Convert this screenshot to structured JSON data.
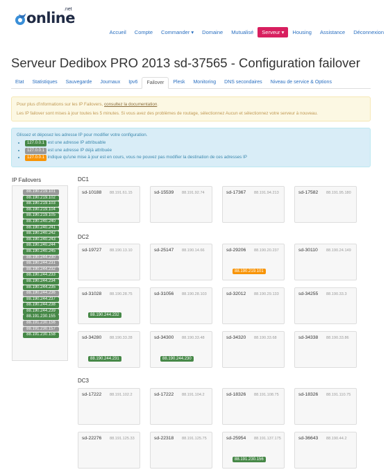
{
  "brand": {
    "name": "online",
    "net": ".net"
  },
  "nav": [
    {
      "label": "Accueil",
      "active": false
    },
    {
      "label": "Compte",
      "active": false
    },
    {
      "label": "Commander ▾",
      "active": false
    },
    {
      "label": "Domaine",
      "active": false
    },
    {
      "label": "Mutualisé",
      "active": false
    },
    {
      "label": "Serveur ▾",
      "active": true
    },
    {
      "label": "Housing",
      "active": false
    },
    {
      "label": "Assistance",
      "active": false
    },
    {
      "label": "Déconnexion",
      "active": false
    }
  ],
  "title": "Serveur Dedibox PRO 2013 sd-37565 - Configuration failover",
  "tabs": [
    {
      "label": "Etat"
    },
    {
      "label": "Statistiques"
    },
    {
      "label": "Sauvegarde"
    },
    {
      "label": "Journaux"
    },
    {
      "label": "Ipv6"
    },
    {
      "label": "Failover",
      "active": true
    },
    {
      "label": "Plesk"
    },
    {
      "label": "Monitoring"
    },
    {
      "label": "DNS secondaires"
    },
    {
      "label": "Niveau de service & Options"
    }
  ],
  "warning": {
    "line1_pre": "Pour plus d'informations sur les IP Failovers, ",
    "line1_link": "consultez la documentation",
    "line1_post": ".",
    "line2": "Les IP failover sont mises à jour toutes les 5 minutes. Si vous avez des problèmes de routage, sélectionnez Aucun et sélectionnez votre serveur à nouveau."
  },
  "info": {
    "intro": "Glissez et déposez les adresse IP pour modifier votre configuration.",
    "legend": [
      {
        "badge": "127.0.0.1",
        "color": "green",
        "text": "est une adresse IP attribuable"
      },
      {
        "badge": "127.0.0.1",
        "color": "gray",
        "text": "est une adresse IP déjà attribuée"
      },
      {
        "badge": "127.0.0.1",
        "color": "orange",
        "text": "indique qu'une mise à jour est en cours, vous ne pouvez pas modifier la destination de ces adresses IP"
      }
    ]
  },
  "ip_failovers": {
    "title": "IP Failovers",
    "items": [
      {
        "ip": "88.190.219.101",
        "status": "gray"
      },
      {
        "ip": "88.190.219.102",
        "status": "green"
      },
      {
        "ip": "88.190.219.103",
        "status": "green"
      },
      {
        "ip": "88.190.219.104",
        "status": "green"
      },
      {
        "ip": "88.190.219.105",
        "status": "green"
      },
      {
        "ip": "88.190.240.240",
        "status": "green"
      },
      {
        "ip": "88.190.240.241",
        "status": "green"
      },
      {
        "ip": "88.190.240.242",
        "status": "green"
      },
      {
        "ip": "88.190.240.243",
        "status": "green"
      },
      {
        "ip": "88.190.240.244",
        "status": "green"
      },
      {
        "ip": "88.190.240.245",
        "status": "green"
      },
      {
        "ip": "88.190.244.230",
        "status": "gray"
      },
      {
        "ip": "88.190.244.231",
        "status": "gray"
      },
      {
        "ip": "88.190.244.232",
        "status": "gray"
      },
      {
        "ip": "88.190.244.233",
        "status": "green"
      },
      {
        "ip": "88.190.244.234",
        "status": "green"
      },
      {
        "ip": "88.190.244.235",
        "status": "green"
      },
      {
        "ip": "88.190.244.236",
        "status": "gray"
      },
      {
        "ip": "88.190.244.237",
        "status": "green"
      },
      {
        "ip": "88.190.244.238",
        "status": "green"
      },
      {
        "ip": "88.190.244.239",
        "status": "green"
      },
      {
        "ip": "88.191.230.155",
        "status": "green"
      },
      {
        "ip": "88.191.230.156",
        "status": "gray"
      },
      {
        "ip": "88.191.230.157",
        "status": "gray"
      },
      {
        "ip": "88.191.230.158",
        "status": "green"
      }
    ]
  },
  "datacenters": [
    {
      "name": "DC1",
      "servers": [
        {
          "name": "sd-10188",
          "ip": "88.191.61.15"
        },
        {
          "name": "sd-15539",
          "ip": "88.191.92.74"
        },
        {
          "name": "sd-17367",
          "ip": "88.191.94.213"
        },
        {
          "name": "sd-17582",
          "ip": "88.191.95.180"
        }
      ]
    },
    {
      "name": "DC2",
      "servers": [
        {
          "name": "sd-19727",
          "ip": "88.190.13.10"
        },
        {
          "name": "sd-25147",
          "ip": "88.190.14.66"
        },
        {
          "name": "sd-29206",
          "ip": "88.190.20.237",
          "failover": {
            "ip": "88.190.219.101",
            "status": "orange"
          }
        },
        {
          "name": "sd-30110",
          "ip": "88.190.24.149"
        },
        {
          "name": "sd-31028",
          "ip": "88.190.28.75",
          "failover": {
            "ip": "88.190.244.232",
            "status": "green"
          }
        },
        {
          "name": "sd-31056",
          "ip": "88.190.28.103"
        },
        {
          "name": "sd-32012",
          "ip": "88.190.29.133"
        },
        {
          "name": "sd-34255",
          "ip": "88.190.33.3"
        },
        {
          "name": "sd-34280",
          "ip": "88.190.33.28",
          "failover": {
            "ip": "88.190.244.231",
            "status": "green"
          }
        },
        {
          "name": "sd-34300",
          "ip": "88.190.33.48",
          "failover": {
            "ip": "88.190.244.230",
            "status": "green"
          }
        },
        {
          "name": "sd-34320",
          "ip": "88.190.33.68"
        },
        {
          "name": "sd-34338",
          "ip": "88.190.33.86"
        }
      ]
    },
    {
      "name": "DC3",
      "servers": [
        {
          "name": "sd-17222",
          "ip": "88.191.102.2"
        },
        {
          "name": "sd-17222",
          "ip": "88.191.104.2"
        },
        {
          "name": "sd-18326",
          "ip": "88.191.108.75"
        },
        {
          "name": "sd-18326",
          "ip": "88.191.110.75"
        },
        {
          "name": "sd-22276",
          "ip": "88.191.125.33"
        },
        {
          "name": "sd-22318",
          "ip": "88.191.125.75"
        },
        {
          "name": "sd-25954",
          "ip": "88.191.137.175",
          "failover": {
            "ip": "88.191.230.156",
            "status": "green"
          }
        },
        {
          "name": "sd-36643",
          "ip": "88.190.44.2"
        }
      ]
    }
  ]
}
